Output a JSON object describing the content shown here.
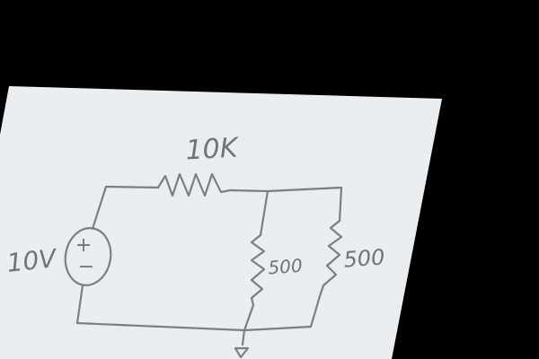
{
  "diagram": {
    "type": "circuit-schematic",
    "medium": "pencil-on-paper-photo",
    "colors": {
      "background": "#000000",
      "paper": "#eef1f4",
      "pencil": "#7a7f86"
    },
    "source": {
      "label": "10V",
      "plus_sign": "+",
      "minus_sign": "−"
    },
    "series_resistor": {
      "label": "10K"
    },
    "parallel_resistors": [
      {
        "label": "500"
      },
      {
        "label": "500"
      }
    ],
    "ground": {
      "icon": "ground-icon"
    }
  }
}
